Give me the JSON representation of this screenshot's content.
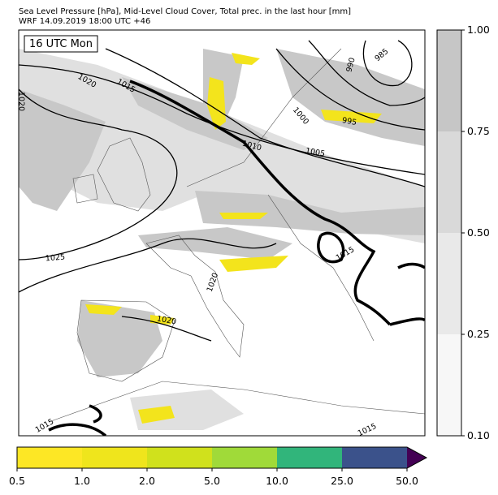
{
  "header": {
    "line1": "Sea Level Pressure [hPa], Mid-Level Cloud Cover, Total prec. in the last hour [mm]",
    "line2": "WRF 14.09.2019 18:00 UTC +46"
  },
  "map": {
    "time_label": "16 UTC Mon",
    "contour_labels": [
      "1020",
      "1015",
      "1020",
      "990",
      "985",
      "1000",
      "995",
      "1010",
      "1005",
      "1025",
      "1015",
      "1020",
      "1020",
      "1015",
      "1015"
    ]
  },
  "cloud_colorbar": {
    "ticks": [
      "0.10",
      "0.25",
      "0.50",
      "0.75",
      "1.00"
    ]
  },
  "precip_colorbar": {
    "ticks": [
      "0.5",
      "1.0",
      "2.0",
      "5.0",
      "10.0",
      "25.0",
      "50.0"
    ]
  }
}
